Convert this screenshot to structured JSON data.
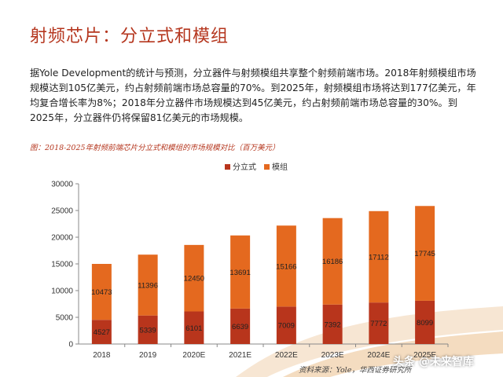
{
  "page": {
    "title": "射频芯片：分立式和模组",
    "paragraph": "据Yole Development的统计与预测，分立器件与射频模组共享整个射频前端市场。2018年射频模组市场规模达到105亿美元，约占射频前端市场总容量的70%。到2025年，射频模组市场将达到177亿美元，年均复合增长率为8%；2018年分立器件市场规模达到45亿美元，约占射频前端市场总容量的30%。到2025年，分立器件仍将保留81亿美元的市场规模。",
    "figure_caption": "图：2018-2025年射频前端芯片分立式和模组的市场规模对比（百万美元）",
    "source": "资料来源：Yole，华西证券研究所",
    "watermark": "头条 @未来智库"
  },
  "colors": {
    "title": "#b5361e",
    "discrete": "#b8351c",
    "module": "#e4691f",
    "accent_wave": "#e9c9a0"
  },
  "chart_data": {
    "type": "bar",
    "stacked": true,
    "categories": [
      "2018",
      "2019",
      "2020E",
      "2021E",
      "2022E",
      "2023E",
      "2024E",
      "2025E"
    ],
    "series": [
      {
        "name": "分立式",
        "values": [
          4527,
          5339,
          6101,
          6639,
          7009,
          7392,
          7772,
          8099
        ]
      },
      {
        "name": "模组",
        "values": [
          10473,
          11396,
          12450,
          13691,
          15166,
          16186,
          17112,
          17745
        ]
      }
    ],
    "ylim": [
      0,
      30000
    ],
    "yticks": [
      0,
      5000,
      10000,
      15000,
      20000,
      25000,
      30000
    ],
    "legend": "top-center",
    "grid": false
  }
}
